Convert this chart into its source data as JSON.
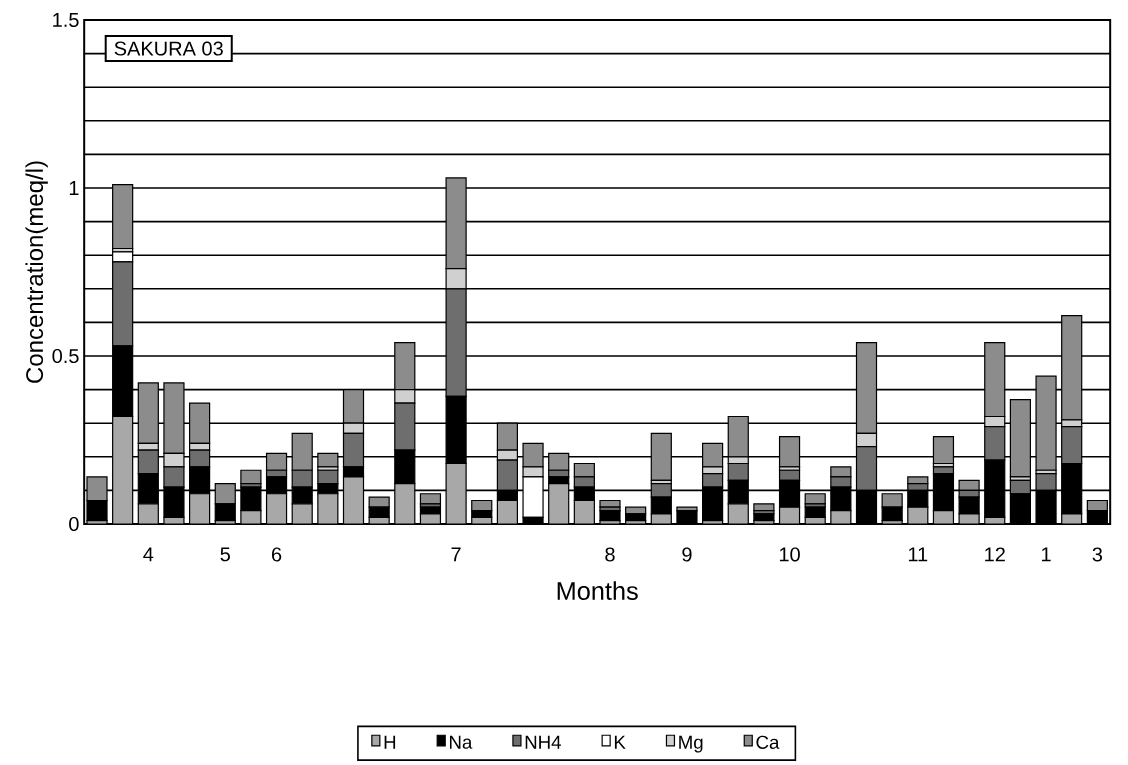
{
  "chart_data": {
    "type": "bar",
    "stacked": true,
    "title": "SAKURA 03",
    "xlabel": "Months",
    "ylabel": "Concentration(meq/l)",
    "categories": [
      null,
      null,
      "4",
      null,
      null,
      "5",
      null,
      "6",
      null,
      null,
      null,
      null,
      null,
      null,
      "7",
      null,
      null,
      null,
      null,
      null,
      "8",
      null,
      null,
      "9",
      null,
      null,
      null,
      "10",
      null,
      null,
      null,
      null,
      "11",
      null,
      null,
      "12",
      null,
      "1",
      null,
      "3"
    ],
    "series": [
      {
        "name": "H",
        "color": "#a8a8a8",
        "values": [
          0.01,
          0.32,
          0.06,
          0.02,
          0.09,
          0.01,
          0.04,
          0.09,
          0.06,
          0.09,
          0.14,
          0.02,
          0.12,
          0.03,
          0.18,
          0.02,
          0.07,
          0,
          0.12,
          0.07,
          0.01,
          0.01,
          0.03,
          0,
          0.01,
          0.06,
          0.01,
          0.05,
          0.02,
          0.04,
          0,
          0.01,
          0.05,
          0.04,
          0.03,
          0.02,
          0,
          0,
          0.03,
          0
        ]
      },
      {
        "name": "Na",
        "color": "#000000",
        "values": [
          0.06,
          0.21,
          0.09,
          0.09,
          0.08,
          0.05,
          0.07,
          0.05,
          0.05,
          0.03,
          0.03,
          0.03,
          0.1,
          0.02,
          0.2,
          0.02,
          0.03,
          0.02,
          0.02,
          0.04,
          0.03,
          0.02,
          0.05,
          0.04,
          0.1,
          0.07,
          0.02,
          0.08,
          0.03,
          0.07,
          0.1,
          0.04,
          0.05,
          0.11,
          0.05,
          0.17,
          0.09,
          0.1,
          0.15,
          0.04
        ]
      },
      {
        "name": "NH4",
        "color": "#6e6e6e",
        "values": [
          0,
          0.25,
          0.07,
          0.06,
          0.05,
          0,
          0.01,
          0.02,
          0.05,
          0.04,
          0.1,
          0,
          0.14,
          0.01,
          0.32,
          0,
          0.09,
          0,
          0.02,
          0.03,
          0.01,
          0,
          0.04,
          0,
          0.04,
          0.05,
          0.01,
          0.03,
          0.01,
          0.03,
          0.13,
          0,
          0.02,
          0.02,
          0.02,
          0.1,
          0.04,
          0.05,
          0.11,
          0
        ]
      },
      {
        "name": "K",
        "color": "#ffffff",
        "values": [
          0,
          0.03,
          0,
          0,
          0,
          0,
          0,
          0,
          0,
          0,
          0,
          0,
          0,
          0,
          0,
          0,
          0,
          0.12,
          0,
          0,
          0,
          0,
          0,
          0,
          0,
          0,
          0,
          0,
          0,
          0,
          0,
          0,
          0,
          0,
          0,
          0,
          0,
          0,
          0,
          0
        ]
      },
      {
        "name": "Mg",
        "color": "#d0d0d0",
        "values": [
          0,
          0.01,
          0.02,
          0.04,
          0.02,
          0,
          0,
          0,
          0,
          0.01,
          0.03,
          0,
          0.04,
          0,
          0.06,
          0,
          0.03,
          0.03,
          0,
          0,
          0,
          0,
          0.01,
          0,
          0.02,
          0.02,
          0,
          0.01,
          0,
          0,
          0.04,
          0,
          0,
          0.01,
          0,
          0.03,
          0.01,
          0.01,
          0.02,
          0
        ]
      },
      {
        "name": "Ca",
        "color": "#8c8c8c",
        "values": [
          0.07,
          0.19,
          0.18,
          0.21,
          0.12,
          0.06,
          0.04,
          0.05,
          0.11,
          0.04,
          0.1,
          0.03,
          0.14,
          0.03,
          0.27,
          0.03,
          0.08,
          0.07,
          0.05,
          0.04,
          0.02,
          0.02,
          0.14,
          0.01,
          0.07,
          0.12,
          0.02,
          0.09,
          0.03,
          0.03,
          0.27,
          0.04,
          0.02,
          0.08,
          0.03,
          0.22,
          0.23,
          0.28,
          0.31,
          0.03
        ]
      }
    ],
    "ylim": [
      0,
      1.5
    ],
    "yticks": [
      0,
      {
        "value": 0.1,
        "label": null
      },
      {
        "value": 0.2,
        "label": null
      },
      {
        "value": 0.3,
        "label": null
      },
      {
        "value": 0.4,
        "label": null
      },
      0.5,
      {
        "value": 0.6,
        "label": null
      },
      {
        "value": 0.7,
        "label": null
      },
      {
        "value": 0.8,
        "label": null
      },
      {
        "value": 0.9,
        "label": null
      },
      1,
      {
        "value": 1.1,
        "label": null
      },
      {
        "value": 1.2,
        "label": null
      },
      {
        "value": 1.3,
        "label": null
      },
      {
        "value": 1.4,
        "label": null
      },
      1.5
    ],
    "grid": "y",
    "legend": "bottom"
  }
}
